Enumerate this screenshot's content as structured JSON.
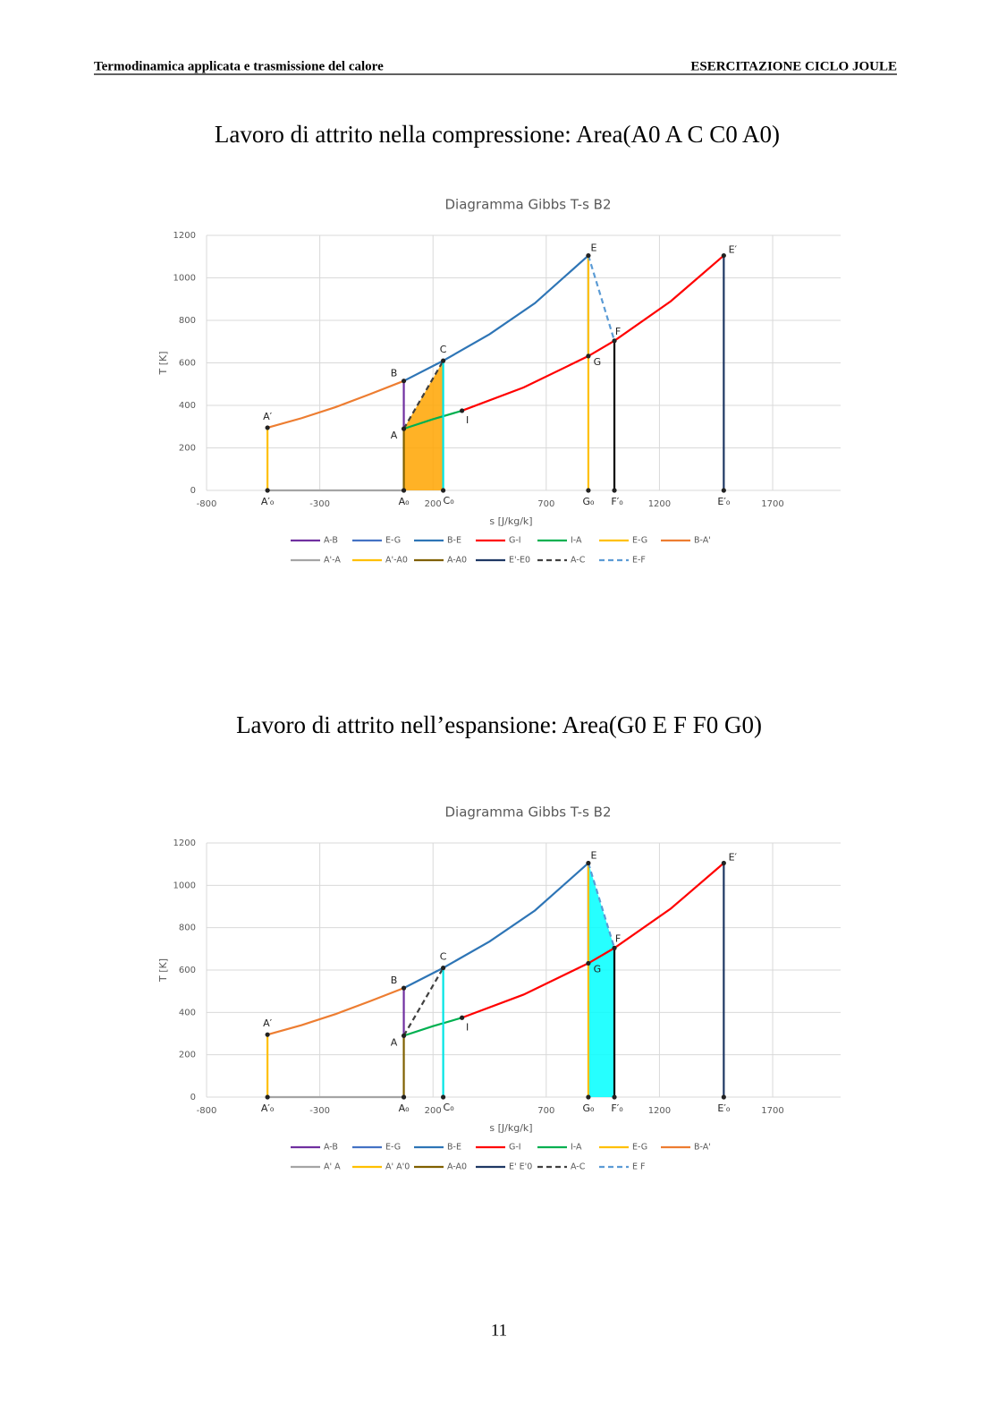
{
  "header": {
    "left": "Termodinamica applicata e trasmissione del calore",
    "right": "ESERCITAZIONE CICLO JOULE"
  },
  "headings": [
    "Lavoro di attrito nella compressione: Area(A0 A C C0 A0)",
    "Lavoro di attrito nell’espansione: Area(G0 E F F0 G0)"
  ],
  "page_number": "11",
  "chart_data": [
    {
      "type": "line",
      "title": "Diagramma Gibbs T-s B2",
      "x_label": "s [J/kg/k]",
      "y_label": "T [K]",
      "xlim": [
        -800,
        2000
      ],
      "xticks": [
        -800,
        -300,
        200,
        700,
        1200,
        1700
      ],
      "ylim": [
        0,
        1200
      ],
      "yticks": [
        0,
        200,
        400,
        600,
        800,
        1000,
        1200
      ],
      "grid": true,
      "shade": {
        "color": "#ffa500",
        "x": [
          71,
          71,
          245,
          245
        ],
        "values": [
          0,
          290,
          610,
          0
        ]
      },
      "series": [
        {
          "name": "A-B",
          "color": "#7030a0",
          "x": [
            71,
            71
          ],
          "values": [
            290,
            515
          ]
        },
        {
          "name": "E-G",
          "color": "#4472c4",
          "x": [
            886,
            886
          ],
          "values": [
            1105,
            632
          ]
        },
        {
          "name": "B-E",
          "color": "#2e75b6",
          "x": [
            71,
            245,
            450,
            650,
            886
          ],
          "values": [
            515,
            610,
            735,
            881,
            1105
          ]
        },
        {
          "name": "G-I",
          "color": "#ff0000",
          "x": [
            328,
            600,
            886,
            1001,
            1250,
            1484
          ],
          "values": [
            375,
            484,
            632,
            704,
            890,
            1105
          ]
        },
        {
          "name": "I-A",
          "color": "#00b050",
          "x": [
            71,
            200,
            328
          ],
          "values": [
            290,
            335,
            375
          ]
        },
        {
          "name": "E-G",
          "color": "#ffc000",
          "x": [
            886,
            886
          ],
          "values": [
            1105,
            0
          ]
        },
        {
          "name": "B-A'",
          "color": "#ed7d31",
          "x": [
            -531,
            -380,
            -230,
            -80,
            71
          ],
          "values": [
            295,
            340,
            392,
            452,
            515
          ]
        },
        {
          "name": "A'-A",
          "color": "#a5a5a5",
          "x": [
            -531,
            71
          ],
          "values": [
            0,
            0
          ]
        },
        {
          "name": "A'-A0",
          "color": "#ffc000",
          "x": [
            -531,
            -531
          ],
          "values": [
            295,
            0
          ]
        },
        {
          "name": "A-A0",
          "color": "#806000",
          "x": [
            71,
            71
          ],
          "values": [
            290,
            0
          ]
        },
        {
          "name": "E'-E0",
          "color": "#1f3864",
          "x": [
            1484,
            1484
          ],
          "values": [
            1105,
            0
          ]
        },
        {
          "name": "A-C",
          "color": "#404040",
          "dashed": true,
          "x": [
            71,
            245
          ],
          "values": [
            290,
            610
          ]
        },
        {
          "name": "E-F",
          "color": "#5b9bd5",
          "dashed": true,
          "x": [
            886,
            1001
          ],
          "values": [
            1105,
            704
          ]
        },
        {
          "color": "#00e5e5",
          "x": [
            245,
            245
          ],
          "values": [
            610,
            0
          ]
        },
        {
          "color": "#000000",
          "x": [
            1001,
            1001
          ],
          "values": [
            704,
            0
          ]
        }
      ],
      "points": [
        {
          "label": "A′",
          "x": -531,
          "y": 295
        },
        {
          "label": "A′₀",
          "x": -531,
          "y": 0
        },
        {
          "label": "A",
          "x": 71,
          "y": 290
        },
        {
          "label": "A₀",
          "x": 71,
          "y": 0
        },
        {
          "label": "B",
          "x": 71,
          "y": 515
        },
        {
          "label": "C",
          "x": 245,
          "y": 610
        },
        {
          "label": "C₀",
          "x": 245,
          "y": 0
        },
        {
          "label": "I",
          "x": 328,
          "y": 375
        },
        {
          "label": "G",
          "x": 886,
          "y": 632
        },
        {
          "label": "G₀",
          "x": 886,
          "y": 0
        },
        {
          "label": "E",
          "x": 886,
          "y": 1105
        },
        {
          "label": "E′",
          "x": 1484,
          "y": 1105
        },
        {
          "label": "E′₀",
          "x": 1484,
          "y": 0
        },
        {
          "label": "F",
          "x": 1001,
          "y": 704
        },
        {
          "label": "F′₀",
          "x": 1001,
          "y": 0
        }
      ]
    },
    {
      "type": "line",
      "title": "Diagramma Gibbs T-s B2",
      "x_label": "s [J/kg/k]",
      "y_label": "T [K]",
      "xlim": [
        -800,
        2000
      ],
      "xticks": [
        -800,
        -300,
        200,
        700,
        1200,
        1700
      ],
      "ylim": [
        0,
        1200
      ],
      "yticks": [
        0,
        200,
        400,
        600,
        800,
        1000,
        1200
      ],
      "grid": true,
      "shade": {
        "color": "#00ffff",
        "x": [
          886,
          886,
          1001,
          1001
        ],
        "values": [
          0,
          1105,
          704,
          0
        ]
      },
      "series": [
        {
          "name": "A-B",
          "color": "#7030a0",
          "x": [
            71,
            71
          ],
          "values": [
            290,
            515
          ]
        },
        {
          "name": "E-G",
          "color": "#4472c4",
          "x": [
            886,
            886
          ],
          "values": [
            1105,
            632
          ]
        },
        {
          "name": "B-E",
          "color": "#2e75b6",
          "x": [
            71,
            245,
            450,
            650,
            886
          ],
          "values": [
            515,
            610,
            735,
            881,
            1105
          ]
        },
        {
          "name": "G-I",
          "color": "#ff0000",
          "x": [
            328,
            600,
            886,
            1001,
            1250,
            1484
          ],
          "values": [
            375,
            484,
            632,
            704,
            890,
            1105
          ]
        },
        {
          "name": "I-A",
          "color": "#00b050",
          "x": [
            71,
            200,
            328
          ],
          "values": [
            290,
            335,
            375
          ]
        },
        {
          "name": "E-G",
          "color": "#ffc000",
          "x": [
            886,
            886
          ],
          "values": [
            1105,
            0
          ]
        },
        {
          "name": "B-A'",
          "color": "#ed7d31",
          "x": [
            -531,
            -380,
            -230,
            -80,
            71
          ],
          "values": [
            295,
            340,
            392,
            452,
            515
          ]
        },
        {
          "name": "A' A",
          "color": "#a5a5a5",
          "x": [
            -531,
            71
          ],
          "values": [
            0,
            0
          ]
        },
        {
          "name": "A' A'0",
          "color": "#ffc000",
          "x": [
            -531,
            -531
          ],
          "values": [
            295,
            0
          ]
        },
        {
          "name": "A-A0",
          "color": "#806000",
          "x": [
            71,
            71
          ],
          "values": [
            290,
            0
          ]
        },
        {
          "name": "E' E'0",
          "color": "#1f3864",
          "x": [
            1484,
            1484
          ],
          "values": [
            1105,
            0
          ]
        },
        {
          "name": "A-C",
          "color": "#404040",
          "dashed": true,
          "x": [
            71,
            245
          ],
          "values": [
            290,
            610
          ]
        },
        {
          "name": "E F",
          "color": "#5b9bd5",
          "dashed": true,
          "x": [
            886,
            1001
          ],
          "values": [
            1105,
            704
          ]
        },
        {
          "color": "#00e5e5",
          "x": [
            245,
            245
          ],
          "values": [
            610,
            0
          ]
        },
        {
          "color": "#000000",
          "x": [
            1001,
            1001
          ],
          "values": [
            704,
            0
          ]
        }
      ],
      "points": [
        {
          "label": "A′",
          "x": -531,
          "y": 295
        },
        {
          "label": "A′₀",
          "x": -531,
          "y": 0
        },
        {
          "label": "A",
          "x": 71,
          "y": 290
        },
        {
          "label": "A₀",
          "x": 71,
          "y": 0
        },
        {
          "label": "B",
          "x": 71,
          "y": 515
        },
        {
          "label": "C",
          "x": 245,
          "y": 610
        },
        {
          "label": "C₀",
          "x": 245,
          "y": 0
        },
        {
          "label": "I",
          "x": 328,
          "y": 375
        },
        {
          "label": "G",
          "x": 886,
          "y": 632
        },
        {
          "label": "G₀",
          "x": 886,
          "y": 0
        },
        {
          "label": "E",
          "x": 886,
          "y": 1105
        },
        {
          "label": "E′",
          "x": 1484,
          "y": 1105
        },
        {
          "label": "E′₀",
          "x": 1484,
          "y": 0
        },
        {
          "label": "F",
          "x": 1001,
          "y": 704
        },
        {
          "label": "F′₀",
          "x": 1001,
          "y": 0
        }
      ]
    }
  ]
}
